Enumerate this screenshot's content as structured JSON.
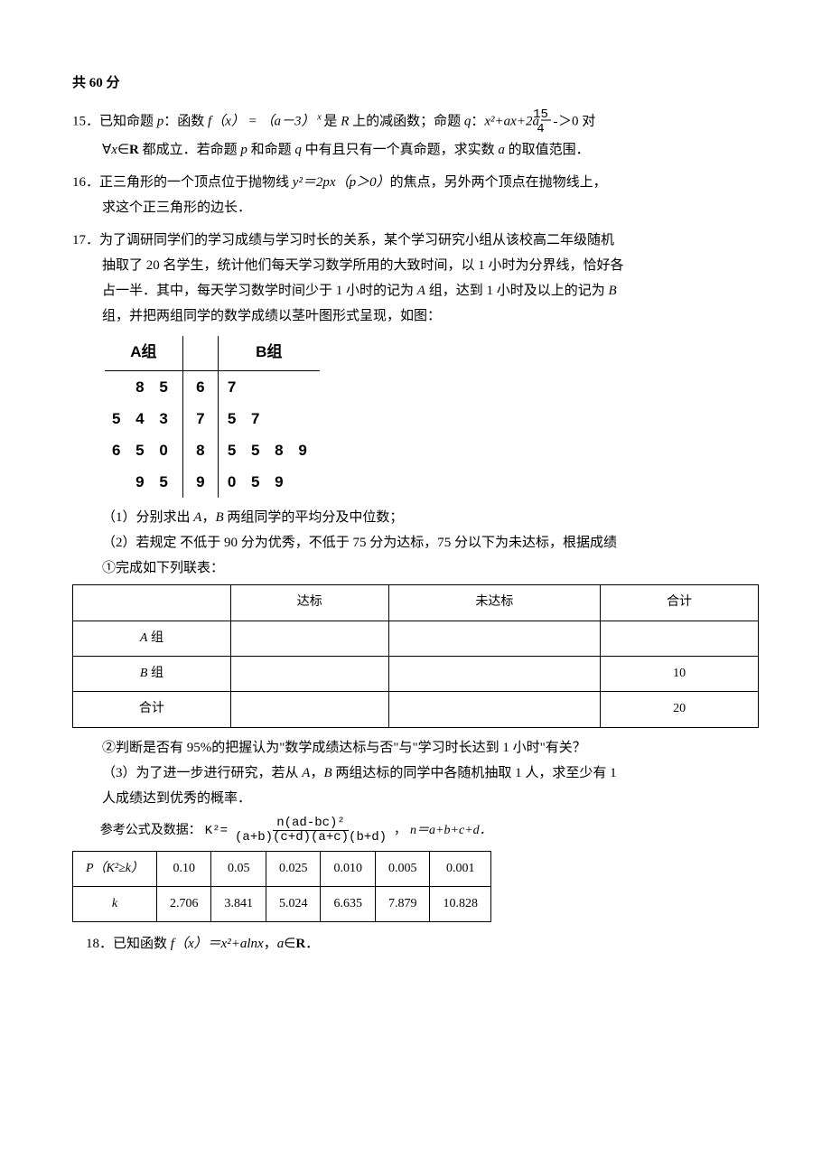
{
  "header": {
    "text": "共 60 分"
  },
  "p15": {
    "num": "15．",
    "line1_a": "已知命题 ",
    "p_it": "p",
    "line1_b": "：函数 ",
    "fx": "f（x） = （a－3）",
    "exp_x": " x ",
    "line1_c": "是 ",
    "R_it": "R",
    "line1_d": " 上的减函数；命题 ",
    "q_it": "q",
    "line1_e": "：",
    "quad": "x²+ax+2a",
    "minus": "－",
    "frac_num": "15",
    "frac_den": "4",
    "gt0": "＞0 对",
    "line2_a": "∀",
    "x_it": "x",
    "in": "∈",
    "R_bold": "R",
    "line2_b": " 都成立．若命题 ",
    "line2_c": " 和命题 ",
    "line2_d": " 中有且只有一个真命题，求实数 ",
    "a_it": "a",
    "line2_e": " 的取值范围．"
  },
  "p16": {
    "num": "16．",
    "line1": "正三角形的一个顶点位于抛物线 ",
    "eqn": "y²＝2px（p＞0）",
    "line1_b": "的焦点，另外两个顶点在抛物线上，",
    "line2": "求这个正三角形的边长．"
  },
  "p17": {
    "num": "17．",
    "intro1": "为了调研同学们的学习成绩与学习时长的关系，某个学习研究小组从该校高二年级随机",
    "intro2": "抽取了 20 名学生，统计他们每天学习数学所用的大致时间，以 1 小时为分界线，恰好各",
    "intro3_a": "占一半．其中，每天学习数学时间少于 1 小时的记为 ",
    "A_it": "A",
    "intro3_b": " 组，达到 1 小时及以上的记为 ",
    "B_it": "B",
    "intro4": "组，并把两组同学的数学成绩以茎叶图形式呈现，如图：",
    "stem_leaf": {
      "head_left": "A组",
      "head_right": "B组",
      "rows": [
        {
          "left": "8 5",
          "stem": "6",
          "right": "7"
        },
        {
          "left": "5 4 3",
          "stem": "7",
          "right": "5 7"
        },
        {
          "left": "6 5 0",
          "stem": "8",
          "right": "5 5 8 9"
        },
        {
          "left": "9 5",
          "stem": "9",
          "right": "0 5 9"
        }
      ]
    },
    "q1_a": "（1）分别求出 ",
    "q1_b": "，",
    "q1_c": " 两组同学的平均分及中位数；",
    "q2": "（2）若规定 不低于 90 分为优秀，不低于 75 分为达标，75 分以下为未达标，根据成绩",
    "q2_sub": "①完成如下列联表：",
    "contingency": {
      "headers": [
        "",
        "达标",
        "未达标",
        "合计"
      ],
      "rows": [
        {
          "label": "A 组",
          "label_it": "A",
          "c1": "",
          "c2": "",
          "c3": ""
        },
        {
          "label": "B 组",
          "label_it": "B",
          "c1": "",
          "c2": "",
          "c3": "10"
        },
        {
          "label_plain": "合计",
          "c1": "",
          "c2": "",
          "c3": "20"
        }
      ]
    },
    "q2_2": "②判断是否有 95%的把握认为\"数学成绩达标与否\"与\"学习时长达到 1 小时\"有关？",
    "q3_a": "（3）为了进一步进行研究，若从 ",
    "q3_b": "，",
    "q3_c": " 两组达标的同学中各随机抽取 1 人，求至少有 1",
    "q3_d": "人成绩达到优秀的概率．",
    "formula_label": "参考公式及数据：",
    "k2": "K²=",
    "k2_num": "n(ad-bc)²",
    "k2_den": "(a+b)(c+d)(a+c)(b+d)",
    "comma": "，",
    "n_eq": "n＝a+b+c+d．",
    "ktable": {
      "row1_label": "P（K²≥k）",
      "row1": [
        "0.10",
        "0.05",
        "0.025",
        "0.010",
        "0.005",
        "0.001"
      ],
      "row2_label": "k",
      "row2": [
        "2.706",
        "3.841",
        "5.024",
        "6.635",
        "7.879",
        "10.828"
      ]
    }
  },
  "p18": {
    "num": "18．",
    "text_a": "已知函数 ",
    "fx": "f（x）＝x²+alnx",
    "comma": "，",
    "a_it": "a",
    "in": "∈",
    "R_bold": "R",
    "dot": "．"
  }
}
